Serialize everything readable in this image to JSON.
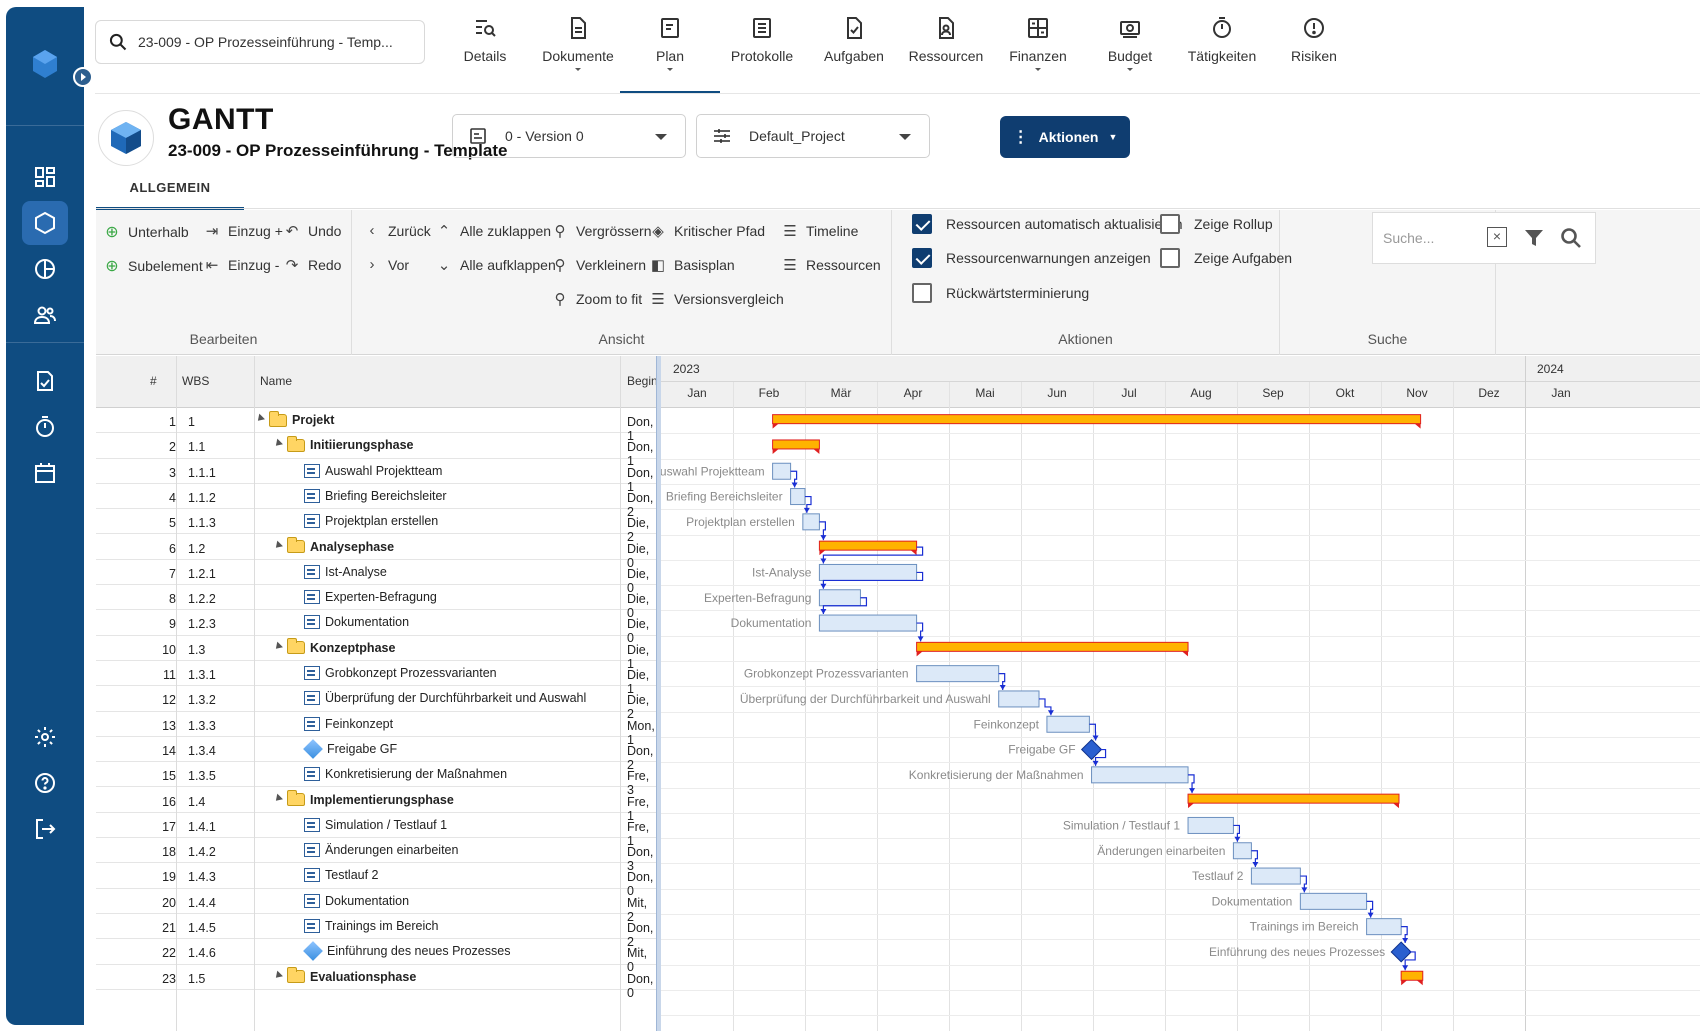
{
  "search": {
    "value": "23-009 - OP Prozesseinführung - Temp..."
  },
  "topnav": [
    {
      "label": "Details",
      "icon": "details-icon",
      "caret": false
    },
    {
      "label": "Dokumente",
      "icon": "document-icon",
      "caret": true
    },
    {
      "label": "Plan",
      "icon": "plan-icon",
      "caret": true,
      "active": true
    },
    {
      "label": "Protokolle",
      "icon": "protocol-icon",
      "caret": false
    },
    {
      "label": "Aufgaben",
      "icon": "tasks-icon",
      "caret": false
    },
    {
      "label": "Ressourcen",
      "icon": "resources-icon",
      "caret": false
    },
    {
      "label": "Finanzen",
      "icon": "finance-icon",
      "caret": true
    },
    {
      "label": "Budget",
      "icon": "budget-icon",
      "caret": true
    },
    {
      "label": "Tätigkeiten",
      "icon": "timer-icon",
      "caret": false
    },
    {
      "label": "Risiken",
      "icon": "risk-icon",
      "caret": false
    }
  ],
  "header": {
    "title": "GANTT",
    "subtitle": "23-009 - OP Prozesseinführung - Template",
    "version": "0 - Version 0",
    "profile": "Default_Project",
    "actions": "Aktionen",
    "tab": "ALLGEMEIN"
  },
  "ribbon": {
    "bearbeiten": {
      "title": "Bearbeiten",
      "unterhalb": "Unterhalb",
      "subelement": "Subelement",
      "einzug_plus": "Einzug +",
      "einzug_minus": "Einzug -",
      "undo": "Undo",
      "redo": "Redo"
    },
    "ansicht": {
      "title": "Ansicht",
      "zurueck": "Zurück",
      "vor": "Vor",
      "alle_zuklappen": "Alle zuklappen",
      "alle_aufklappen": "Alle aufklappen",
      "vergroessern": "Vergrössern",
      "verkleinern": "Verkleinern",
      "zoom_to_fit": "Zoom to fit",
      "kritischer_pfad": "Kritischer Pfad",
      "basisplan": "Basisplan",
      "versionsvergleich": "Versionsvergleich",
      "timeline": "Timeline",
      "ressourcen": "Ressourcen"
    },
    "aktionen": {
      "title": "Aktionen",
      "ressourcen_auto": "Ressourcen automatisch aktualisieren",
      "ressourcen_warn": "Ressourcenwarnungen anzeigen",
      "rueckwaerts": "Rückwärtsterminierung",
      "rollup": "Zeige Rollup",
      "aufgaben": "Zeige Aufgaben",
      "checked": {
        "ressourcen_auto": true,
        "ressourcen_warn": true,
        "rueckwaerts": false,
        "rollup": false,
        "aufgaben": false
      }
    },
    "suche": {
      "title": "Suche",
      "placeholder": "Suche..."
    }
  },
  "grid": {
    "columns": {
      "num": "#",
      "wbs": "WBS",
      "name": "Name",
      "begin": "Begin"
    },
    "rows": [
      {
        "num": "1",
        "wbs": "1",
        "name": "Projekt",
        "begin": "Don, 1",
        "level": 0,
        "type": "folder"
      },
      {
        "num": "2",
        "wbs": "1.1",
        "name": "Initiierungsphase",
        "begin": "Don, 1",
        "level": 1,
        "type": "folder"
      },
      {
        "num": "3",
        "wbs": "1.1.1",
        "name": "Auswahl Projektteam",
        "begin": "Don, 1",
        "level": 2,
        "type": "task"
      },
      {
        "num": "4",
        "wbs": "1.1.2",
        "name": "Briefing Bereichsleiter",
        "begin": "Don, 2",
        "level": 2,
        "type": "task"
      },
      {
        "num": "5",
        "wbs": "1.1.3",
        "name": "Projektplan erstellen",
        "begin": "Die, 2",
        "level": 2,
        "type": "task"
      },
      {
        "num": "6",
        "wbs": "1.2",
        "name": "Analysephase",
        "begin": "Die, 0",
        "level": 1,
        "type": "folder"
      },
      {
        "num": "7",
        "wbs": "1.2.1",
        "name": "Ist-Analyse",
        "begin": "Die, 0",
        "level": 2,
        "type": "task"
      },
      {
        "num": "8",
        "wbs": "1.2.2",
        "name": "Experten-Befragung",
        "begin": "Die, 0",
        "level": 2,
        "type": "task"
      },
      {
        "num": "9",
        "wbs": "1.2.3",
        "name": "Dokumentation",
        "begin": "Die, 0",
        "level": 2,
        "type": "task"
      },
      {
        "num": "10",
        "wbs": "1.3",
        "name": "Konzeptphase",
        "begin": "Die, 1",
        "level": 1,
        "type": "folder"
      },
      {
        "num": "11",
        "wbs": "1.3.1",
        "name": "Grobkonzept Prozessvarianten",
        "begin": "Die, 1",
        "level": 2,
        "type": "task"
      },
      {
        "num": "12",
        "wbs": "1.3.2",
        "name": "Überprüfung der Durchführbarkeit und Auswahl",
        "begin": "Die, 2",
        "level": 2,
        "type": "task"
      },
      {
        "num": "13",
        "wbs": "1.3.3",
        "name": "Feinkonzept",
        "begin": "Mon, 1",
        "level": 2,
        "type": "task"
      },
      {
        "num": "14",
        "wbs": "1.3.4",
        "name": "Freigabe GF",
        "begin": "Don, 2",
        "level": 2,
        "type": "milestone"
      },
      {
        "num": "15",
        "wbs": "1.3.5",
        "name": "Konkretisierung der Maßnahmen",
        "begin": "Fre, 3",
        "level": 2,
        "type": "task"
      },
      {
        "num": "16",
        "wbs": "1.4",
        "name": "Implementierungsphase",
        "begin": "Fre, 1",
        "level": 1,
        "type": "folder"
      },
      {
        "num": "17",
        "wbs": "1.4.1",
        "name": "Simulation / Testlauf 1",
        "begin": "Fre, 1",
        "level": 2,
        "type": "task"
      },
      {
        "num": "18",
        "wbs": "1.4.2",
        "name": "Änderungen einarbeiten",
        "begin": "Don, 3",
        "level": 2,
        "type": "task"
      },
      {
        "num": "19",
        "wbs": "1.4.3",
        "name": "Testlauf 2",
        "begin": "Don, 0",
        "level": 2,
        "type": "task"
      },
      {
        "num": "20",
        "wbs": "1.4.4",
        "name": "Dokumentation",
        "begin": "Mit, 2",
        "level": 2,
        "type": "task"
      },
      {
        "num": "21",
        "wbs": "1.4.5",
        "name": "Trainings im Bereich",
        "begin": "Don, 2",
        "level": 2,
        "type": "task"
      },
      {
        "num": "22",
        "wbs": "1.4.6",
        "name": "Einführung des neues Prozesses",
        "begin": "Mit, 0",
        "level": 2,
        "type": "milestone"
      },
      {
        "num": "23",
        "wbs": "1.5",
        "name": "Evaluationsphase",
        "begin": "Don, 0",
        "level": 1,
        "type": "folder"
      }
    ]
  },
  "gantt": {
    "years": [
      {
        "label": "2023",
        "start_month": 0
      },
      {
        "label": "2024",
        "start_month": 12
      }
    ],
    "months": [
      "Jan",
      "Feb",
      "Mär",
      "Apr",
      "Mai",
      "Jun",
      "Jul",
      "Aug",
      "Sep",
      "Okt",
      "Nov",
      "Dez",
      "Jan"
    ],
    "bars": [
      {
        "row": 0,
        "type": "summary",
        "start": 1.55,
        "end": 10.55
      },
      {
        "row": 1,
        "type": "summary",
        "start": 1.55,
        "end": 2.2
      },
      {
        "row": 2,
        "type": "task",
        "start": 1.55,
        "end": 1.8,
        "label": "Auswahl Projektteam"
      },
      {
        "row": 3,
        "type": "task",
        "start": 1.8,
        "end": 2.0,
        "label": "Briefing Bereichsleiter"
      },
      {
        "row": 4,
        "type": "task",
        "start": 1.97,
        "end": 2.2,
        "label": "Projektplan erstellen"
      },
      {
        "row": 5,
        "type": "summary",
        "start": 2.2,
        "end": 3.55
      },
      {
        "row": 6,
        "type": "task",
        "start": 2.2,
        "end": 3.55,
        "label": "Ist-Analyse"
      },
      {
        "row": 7,
        "type": "task",
        "start": 2.2,
        "end": 2.77,
        "label": "Experten-Befragung"
      },
      {
        "row": 8,
        "type": "task",
        "start": 2.2,
        "end": 3.55,
        "label": "Dokumentation"
      },
      {
        "row": 9,
        "type": "summary",
        "start": 3.55,
        "end": 7.32
      },
      {
        "row": 10,
        "type": "task",
        "start": 3.55,
        "end": 4.69,
        "label": "Grobkonzept Prozessvarianten"
      },
      {
        "row": 11,
        "type": "task",
        "start": 4.69,
        "end": 5.25,
        "label": "Überprüfung der Durchführbarkeit und Auswahl"
      },
      {
        "row": 12,
        "type": "task",
        "start": 5.36,
        "end": 5.95,
        "label": "Feinkonzept"
      },
      {
        "row": 13,
        "type": "milestone",
        "start": 5.98,
        "label": "Freigabe GF"
      },
      {
        "row": 14,
        "type": "task",
        "start": 5.98,
        "end": 7.32,
        "label": "Konkretisierung der Maßnahmen"
      },
      {
        "row": 15,
        "type": "summary",
        "start": 7.32,
        "end": 10.25
      },
      {
        "row": 16,
        "type": "task",
        "start": 7.32,
        "end": 7.95,
        "label": "Simulation / Testlauf 1"
      },
      {
        "row": 17,
        "type": "task",
        "start": 7.95,
        "end": 8.2,
        "label": "Änderungen einarbeiten"
      },
      {
        "row": 18,
        "type": "task",
        "start": 8.2,
        "end": 8.88,
        "label": "Testlauf 2"
      },
      {
        "row": 19,
        "type": "task",
        "start": 8.88,
        "end": 9.8,
        "label": "Dokumentation"
      },
      {
        "row": 20,
        "type": "task",
        "start": 9.8,
        "end": 10.28,
        "label": "Trainings im Bereich"
      },
      {
        "row": 21,
        "type": "milestone",
        "start": 10.28,
        "label": "Einführung des neues Prozesses"
      },
      {
        "row": 22,
        "type": "summary",
        "start": 10.28,
        "end": 10.58
      }
    ],
    "colors": {
      "summary": "#ffb300",
      "summary_edge": "#e02020",
      "task_fill": "#dce9f8",
      "task_edge": "#6b8fbf",
      "milestone": "#2a5fcf",
      "link": "#1a2fd4"
    }
  }
}
